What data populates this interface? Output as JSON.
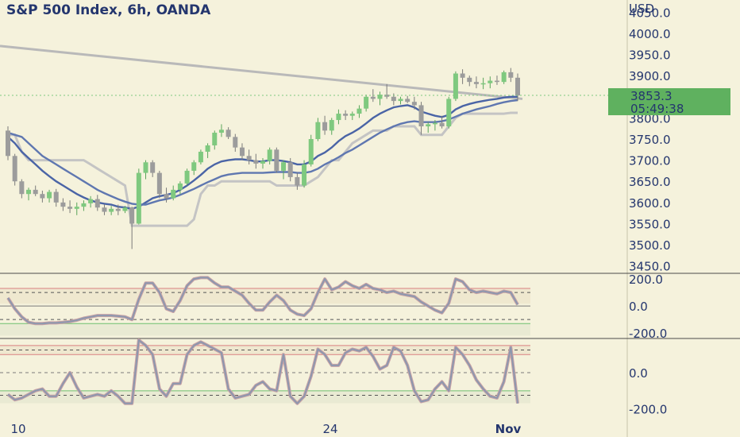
{
  "chart_data": [
    {
      "type": "candlestick",
      "title": "S&P 500 Index, 6h, OANDA",
      "currency": "USD",
      "ylim": [
        3440,
        4060
      ],
      "y_ticks": [
        "4050.0",
        "4000.0",
        "3950.0",
        "3900.0",
        "3850.0",
        "3800.0",
        "3750.0",
        "3700.0",
        "3650.0",
        "3600.0",
        "3550.0",
        "3500.0",
        "3450.0"
      ],
      "x_ticks": [
        "10",
        "24",
        "Nov"
      ],
      "last_price": "3853.3",
      "countdown": "05:49:38",
      "candles": [
        [
          3770,
          3780,
          3700,
          3710
        ],
        [
          3710,
          3715,
          3640,
          3650
        ],
        [
          3650,
          3655,
          3610,
          3620
        ],
        [
          3620,
          3635,
          3605,
          3630
        ],
        [
          3630,
          3640,
          3615,
          3620
        ],
        [
          3620,
          3628,
          3600,
          3610
        ],
        [
          3610,
          3630,
          3600,
          3625
        ],
        [
          3625,
          3632,
          3590,
          3600
        ],
        [
          3600,
          3610,
          3580,
          3590
        ],
        [
          3590,
          3605,
          3575,
          3585
        ],
        [
          3585,
          3600,
          3570,
          3590
        ],
        [
          3590,
          3605,
          3580,
          3598
        ],
        [
          3598,
          3615,
          3588,
          3608
        ],
        [
          3608,
          3618,
          3580,
          3588
        ],
        [
          3588,
          3596,
          3570,
          3578
        ],
        [
          3578,
          3592,
          3570,
          3585
        ],
        [
          3585,
          3595,
          3570,
          3580
        ],
        [
          3580,
          3592,
          3575,
          3588
        ],
        [
          3588,
          3590,
          3490,
          3550
        ],
        [
          3550,
          3680,
          3548,
          3670
        ],
        [
          3670,
          3700,
          3655,
          3695
        ],
        [
          3695,
          3700,
          3660,
          3670
        ],
        [
          3670,
          3675,
          3610,
          3620
        ],
        [
          3620,
          3635,
          3600,
          3610
        ],
        [
          3610,
          3640,
          3605,
          3630
        ],
        [
          3630,
          3650,
          3620,
          3645
        ],
        [
          3645,
          3680,
          3640,
          3675
        ],
        [
          3675,
          3700,
          3665,
          3695
        ],
        [
          3695,
          3725,
          3690,
          3720
        ],
        [
          3720,
          3740,
          3705,
          3735
        ],
        [
          3735,
          3770,
          3725,
          3765
        ],
        [
          3765,
          3785,
          3755,
          3772
        ],
        [
          3772,
          3778,
          3750,
          3755
        ],
        [
          3755,
          3762,
          3720,
          3730
        ],
        [
          3730,
          3740,
          3700,
          3710
        ],
        [
          3710,
          3725,
          3690,
          3700
        ],
        [
          3700,
          3715,
          3680,
          3692
        ],
        [
          3692,
          3705,
          3680,
          3698
        ],
        [
          3698,
          3730,
          3690,
          3725
        ],
        [
          3725,
          3730,
          3670,
          3675
        ],
        [
          3675,
          3700,
          3655,
          3695
        ],
        [
          3695,
          3705,
          3650,
          3660
        ],
        [
          3660,
          3670,
          3630,
          3640
        ],
        [
          3640,
          3700,
          3635,
          3690
        ],
        [
          3690,
          3760,
          3685,
          3750
        ],
        [
          3750,
          3800,
          3745,
          3790
        ],
        [
          3790,
          3805,
          3760,
          3770
        ],
        [
          3770,
          3800,
          3760,
          3795
        ],
        [
          3795,
          3820,
          3785,
          3810
        ],
        [
          3810,
          3818,
          3795,
          3805
        ],
        [
          3805,
          3815,
          3795,
          3810
        ],
        [
          3810,
          3830,
          3800,
          3822
        ],
        [
          3822,
          3855,
          3815,
          3850
        ],
        [
          3850,
          3868,
          3838,
          3845
        ],
        [
          3845,
          3862,
          3830,
          3855
        ],
        [
          3855,
          3880,
          3845,
          3850
        ],
        [
          3850,
          3858,
          3830,
          3840
        ],
        [
          3840,
          3850,
          3832,
          3845
        ],
        [
          3845,
          3852,
          3835,
          3838
        ],
        [
          3838,
          3850,
          3820,
          3830
        ],
        [
          3830,
          3838,
          3760,
          3780
        ],
        [
          3780,
          3790,
          3765,
          3785
        ],
        [
          3785,
          3795,
          3770,
          3788
        ],
        [
          3788,
          3805,
          3775,
          3780
        ],
        [
          3780,
          3850,
          3775,
          3845
        ],
        [
          3845,
          3910,
          3840,
          3905
        ],
        [
          3905,
          3915,
          3880,
          3895
        ],
        [
          3895,
          3900,
          3875,
          3885
        ],
        [
          3885,
          3898,
          3870,
          3880
        ],
        [
          3880,
          3895,
          3868,
          3882
        ],
        [
          3882,
          3898,
          3870,
          3888
        ],
        [
          3888,
          3900,
          3878,
          3885
        ],
        [
          3885,
          3912,
          3880,
          3908
        ],
        [
          3908,
          3918,
          3885,
          3895
        ],
        [
          3895,
          3905,
          3840,
          3853
        ]
      ],
      "ma_lines": [
        {
          "name": "",
          "values": [
            3755,
            3740,
            3720,
            3705,
            3690,
            3675,
            3662,
            3650,
            3640,
            3630,
            3620,
            3612,
            3605,
            3600,
            3597,
            3595,
            3590,
            3588,
            3585,
            3590,
            3600,
            3610,
            3615,
            3618,
            3622,
            3630,
            3640,
            3652,
            3665,
            3680,
            3690,
            3697,
            3700,
            3702,
            3702,
            3700,
            3697,
            3697,
            3700,
            3700,
            3698,
            3695,
            3690,
            3690,
            3697,
            3710,
            3718,
            3730,
            3745,
            3757,
            3765,
            3775,
            3787,
            3800,
            3810,
            3818,
            3825,
            3828,
            3830,
            3825,
            3815,
            3810,
            3805,
            3802,
            3807,
            3820,
            3828,
            3833,
            3837,
            3840,
            3843,
            3845,
            3848,
            3850,
            3850
          ]
        },
        {
          "name": "",
          "values": [
            3765,
            3760,
            3755,
            3740,
            3725,
            3710,
            3700,
            3690,
            3680,
            3670,
            3660,
            3650,
            3640,
            3630,
            3622,
            3615,
            3608,
            3602,
            3597,
            3595,
            3595,
            3600,
            3605,
            3608,
            3612,
            3618,
            3625,
            3632,
            3640,
            3648,
            3655,
            3662,
            3666,
            3668,
            3670,
            3670,
            3670,
            3670,
            3671,
            3672,
            3672,
            3672,
            3670,
            3670,
            3673,
            3680,
            3690,
            3698,
            3707,
            3717,
            3725,
            3735,
            3745,
            3755,
            3765,
            3773,
            3780,
            3786,
            3790,
            3792,
            3790,
            3790,
            3790,
            3792,
            3796,
            3803,
            3810,
            3815,
            3820,
            3824,
            3828,
            3833,
            3837,
            3840,
            3842
          ]
        }
      ],
      "trend_line": {
        "from": 3970,
        "to": 3845
      },
      "cloud_line": [
        3760,
        3760,
        3720,
        3700,
        3700,
        3700,
        3700,
        3700,
        3700,
        3700,
        3700,
        3700,
        3690,
        3680,
        3670,
        3660,
        3650,
        3640,
        3545,
        3545,
        3545,
        3545,
        3545,
        3545,
        3545,
        3545,
        3545,
        3560,
        3620,
        3640,
        3640,
        3650,
        3650,
        3650,
        3650,
        3650,
        3650,
        3650,
        3650,
        3640,
        3640,
        3640,
        3640,
        3640,
        3650,
        3660,
        3680,
        3700,
        3700,
        3720,
        3740,
        3750,
        3760,
        3770,
        3770,
        3770,
        3780,
        3780,
        3780,
        3780,
        3760,
        3760,
        3760,
        3760,
        3780,
        3800,
        3810,
        3810,
        3810,
        3810,
        3810,
        3810,
        3810,
        3812,
        3812
      ],
      "grey_line": {
        "from": 3990,
        "to": 3835
      }
    },
    {
      "type": "line",
      "ylim": [
        -240,
        230
      ],
      "y_ticks": [
        "200.0",
        "0.0",
        "-200.0"
      ],
      "levels": {
        "upper_red": 130,
        "upper_dash": 100,
        "zero": 0,
        "lower_dash": -100,
        "lower_green": -130
      },
      "series": [
        {
          "name": "",
          "values": [
            60,
            -20,
            -80,
            -120,
            -130,
            -130,
            -125,
            -125,
            -120,
            -115,
            -105,
            -90,
            -80,
            -70,
            -70,
            -70,
            -75,
            -80,
            -100,
            50,
            170,
            170,
            100,
            -20,
            -40,
            40,
            150,
            200,
            210,
            210,
            170,
            140,
            140,
            110,
            80,
            20,
            -30,
            -30,
            30,
            80,
            40,
            -30,
            -60,
            -70,
            -20,
            100,
            200,
            120,
            140,
            180,
            150,
            130,
            160,
            130,
            120,
            100,
            110,
            90,
            80,
            70,
            30,
            0,
            -30,
            -50,
            20,
            200,
            180,
            120,
            100,
            110,
            100,
            90,
            110,
            100,
            10
          ]
        }
      ]
    },
    {
      "type": "line",
      "ylim": [
        -250,
        180
      ],
      "y_ticks": [
        "0.0",
        "-200.0"
      ],
      "levels": {
        "upper_red": 150,
        "upper_dash": 125,
        "upper_red2": 100,
        "zero": 0,
        "lower_green": -100,
        "lower_dash": -125
      },
      "series": [
        {
          "name": "",
          "values": [
            -120,
            -150,
            -140,
            -120,
            -100,
            -90,
            -130,
            -130,
            -60,
            0,
            -80,
            -140,
            -130,
            -120,
            -130,
            -100,
            -130,
            -170,
            -170,
            180,
            150,
            100,
            -90,
            -130,
            -60,
            -60,
            100,
            150,
            170,
            150,
            130,
            110,
            -90,
            -140,
            -130,
            -120,
            -70,
            -50,
            -90,
            -100,
            100,
            -130,
            -170,
            -130,
            -20,
            130,
            100,
            40,
            40,
            110,
            130,
            120,
            140,
            90,
            20,
            40,
            140,
            120,
            40,
            -100,
            -160,
            -150,
            -90,
            -50,
            -100,
            140,
            100,
            40,
            -40,
            -90,
            -130,
            -140,
            -50,
            140,
            -170
          ]
        }
      ]
    }
  ]
}
